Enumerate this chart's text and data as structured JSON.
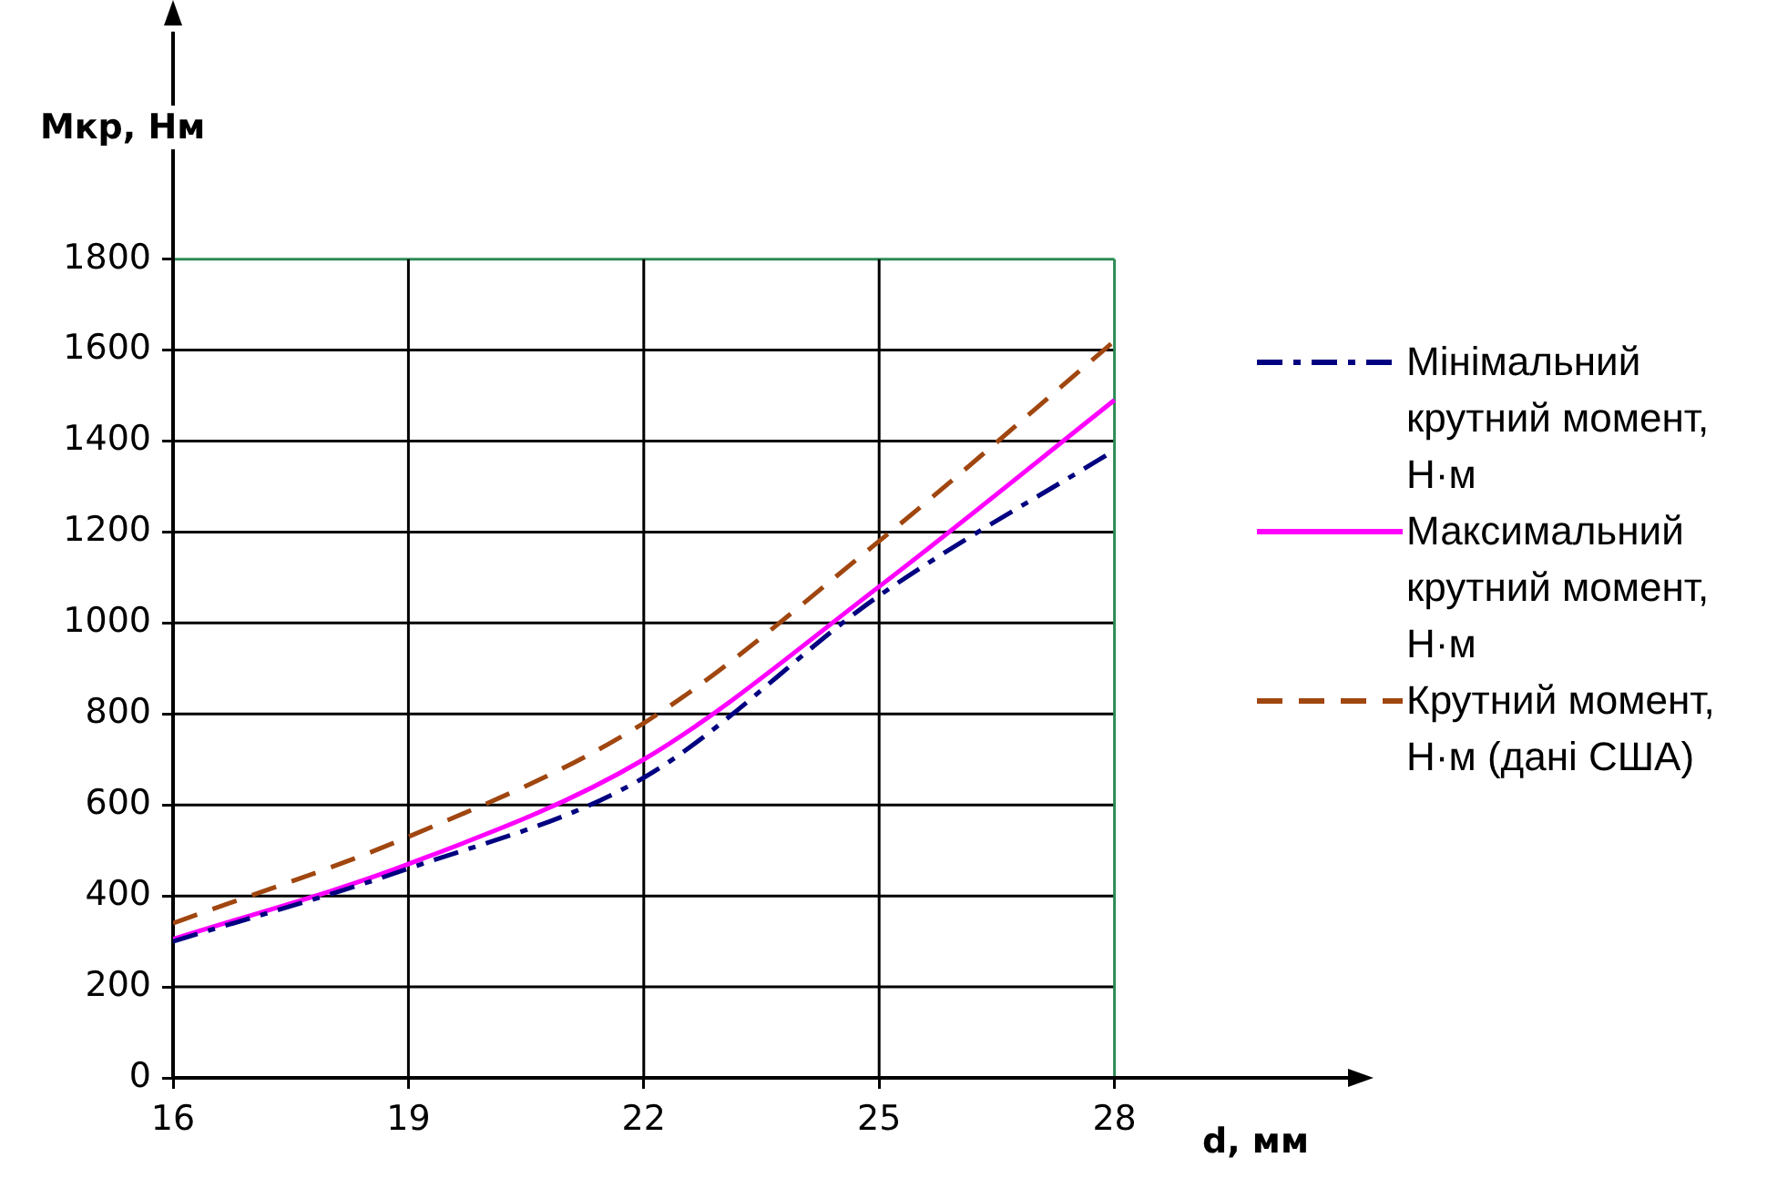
{
  "chart_data": {
    "type": "line",
    "xlabel": "d, мм",
    "ylabel": "Мкр, Нм",
    "x": [
      16,
      19,
      22,
      25,
      28
    ],
    "xlim": [
      16,
      31
    ],
    "xticks": [
      16,
      19,
      22,
      25,
      28
    ],
    "ylim": [
      0,
      2300
    ],
    "yticks": [
      0,
      200,
      400,
      600,
      800,
      1000,
      1200,
      1400,
      1600,
      1800
    ],
    "grid": true,
    "legend": "right",
    "marker": "none",
    "series": [
      {
        "name": "Мінімальний крутний момент, Н·м",
        "color": "#000080",
        "line_style": "dashdot",
        "values": [
          300,
          460,
          660,
          1060,
          1380
        ]
      },
      {
        "name": "Максимальний крутний момент, Н·м",
        "color": "#ff00ff",
        "line_style": "solid",
        "values": [
          305,
          470,
          700,
          1080,
          1490
        ]
      },
      {
        "name": "Крутний момент, Н·м (дані США)",
        "color": "#a0460f",
        "line_style": "dashed",
        "values": [
          340,
          530,
          780,
          1180,
          1620
        ]
      }
    ]
  }
}
